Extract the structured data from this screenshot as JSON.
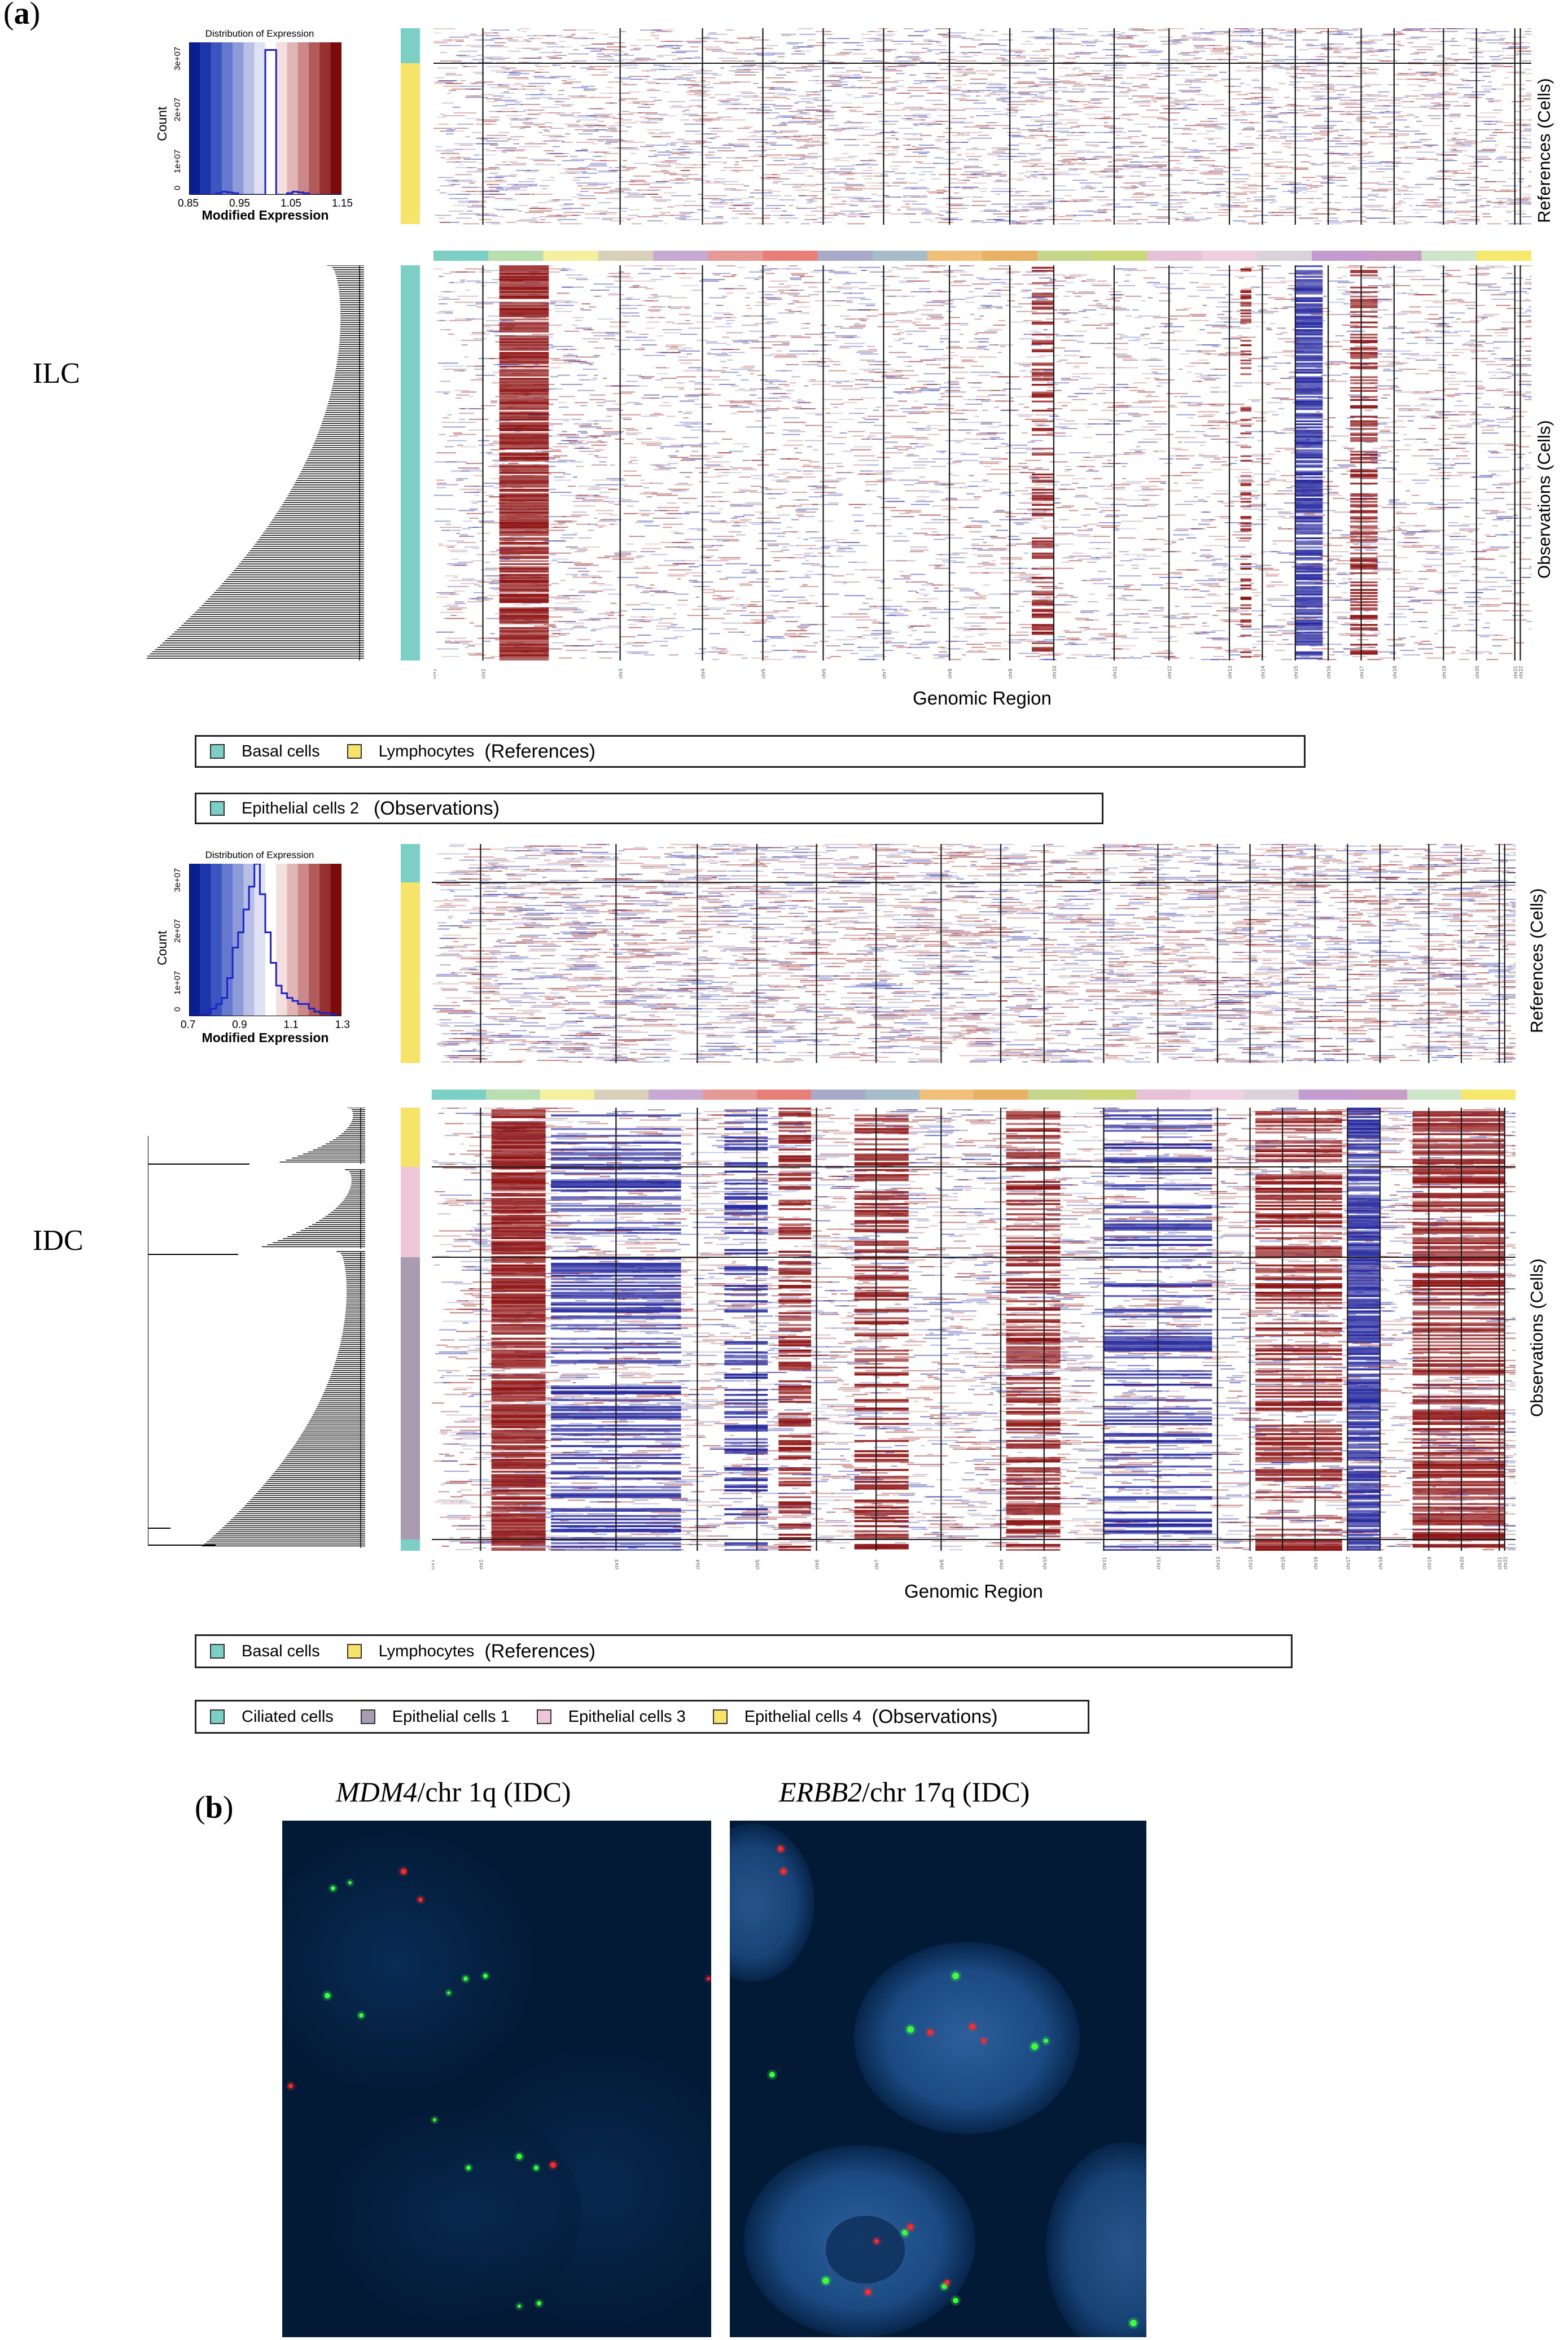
{
  "panel_a_label": {
    "open": "(",
    "letter": "a",
    "close": ")"
  },
  "panel_b_label": {
    "open": "(",
    "letter": "b",
    "close": ")"
  },
  "colors": {
    "low": "#1b1f9b",
    "high": "#8b0a0a",
    "neutral": "#ffffff",
    "basal": "#7ccfc4",
    "lymph": "#f7e36a",
    "epi1": "#a99bb0",
    "epi2": "#7ccfc4",
    "epi3": "#efc6d8",
    "epi4": "#f7e36a",
    "ciliated": "#7ccfc4"
  },
  "chromosome_bar_colors": [
    "#7ccfc4",
    "#b9dfb0",
    "#f4f0a0",
    "#d8d0b8",
    "#c7a9d3",
    "#e59a96",
    "#e67f77",
    "#a8a9c9",
    "#a6bcc9",
    "#f0c07a",
    "#e9b163",
    "#c5d68a",
    "#cbd87a",
    "#e7c2d6",
    "#f0cfe0",
    "#d9d3d9",
    "#c49bd0",
    "#c79dc8",
    "#cfe5c9",
    "#f6e86d"
  ],
  "chromosome_labels": [
    "chr1",
    "chr2",
    "chr3",
    "chr4",
    "chr5",
    "chr6",
    "chr7",
    "chr8",
    "chr9",
    "chr10",
    "chr11",
    "chr12",
    "chr13",
    "chr14",
    "chr15",
    "chr16",
    "chr17",
    "chr18",
    "chr19",
    "chr20",
    "chr21",
    "chr22"
  ],
  "ilc": {
    "label": "ILC",
    "histogram": {
      "title": "Distribution of Expression",
      "y_label": "Count",
      "x_label": "Modified Expression",
      "x_ticks": [
        "0.85",
        "0.95",
        "1.05",
        "1.15"
      ],
      "y_ticks": [
        "0",
        "1e+07",
        "2e+07",
        "3e+07"
      ]
    },
    "references_label": "References (Cells)",
    "observations_label": "Observations (Cells)",
    "x_axis_label": "Genomic Region",
    "legend_references": {
      "items": [
        "Basal cells",
        "Lymphocytes"
      ],
      "group": "(References)"
    },
    "legend_observations": {
      "items": [
        "Epithelial cells 2"
      ],
      "group": "(Observations)"
    }
  },
  "idc": {
    "label": "IDC",
    "histogram": {
      "title": "Distribution of Expression",
      "y_label": "Count",
      "x_label": "Modified Expression",
      "x_ticks": [
        "0.7",
        "0.9",
        "1.1",
        "1.3"
      ],
      "y_ticks": [
        "0",
        "1e+07",
        "2e+07",
        "3e+07"
      ]
    },
    "references_label": "References (Cells)",
    "observations_label": "Observations (Cells)",
    "x_axis_label": "Genomic Region",
    "legend_references": {
      "items": [
        "Basal cells",
        "Lymphocytes"
      ],
      "group": "(References)"
    },
    "legend_observations": {
      "items": [
        "Ciliated cells",
        "Epithelial cells 1",
        "Epithelial cells 3",
        "Epithelial cells 4"
      ],
      "group": "(Observations)"
    }
  },
  "fish_left": {
    "gene": "MDM4",
    "rest": "/chr 1q (IDC)"
  },
  "fish_right": {
    "gene": "ERBB2",
    "rest": "/chr 17q (IDC)"
  }
}
